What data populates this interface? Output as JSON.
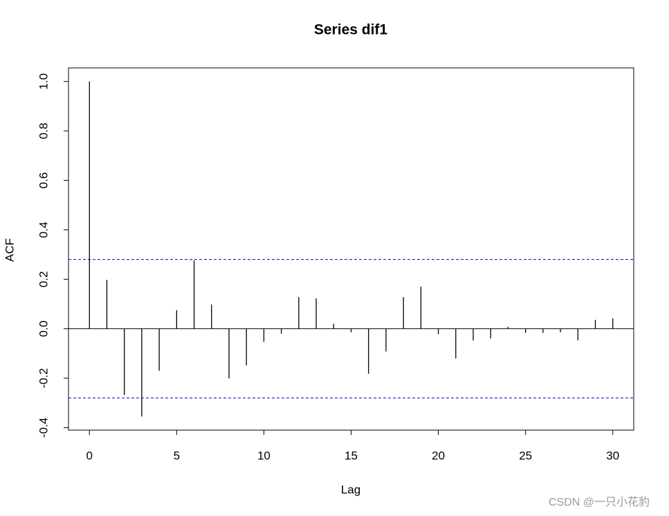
{
  "chart_data": {
    "type": "acf",
    "title": "Series  dif1",
    "x_label": "Lag",
    "y_label": "ACF",
    "x": [
      0,
      1,
      2,
      3,
      4,
      5,
      6,
      7,
      8,
      9,
      10,
      11,
      12,
      13,
      14,
      15,
      16,
      17,
      18,
      19,
      20,
      21,
      22,
      23,
      24,
      25,
      26,
      27,
      28,
      29,
      30
    ],
    "values": [
      1.0,
      0.198,
      -0.268,
      -0.355,
      -0.17,
      0.075,
      0.277,
      0.098,
      -0.201,
      -0.148,
      -0.053,
      -0.02,
      0.128,
      0.123,
      0.02,
      -0.014,
      -0.182,
      -0.092,
      0.128,
      0.17,
      -0.022,
      -0.12,
      -0.047,
      -0.039,
      0.008,
      -0.017,
      -0.017,
      -0.014,
      -0.047,
      0.036,
      0.042
    ],
    "color": "#000000",
    "ci": [
      -0.28,
      0.28
    ],
    "ci_color": "#0000cd",
    "xlim": [
      -1.2,
      31.2
    ],
    "ylim": [
      -0.41,
      1.055
    ],
    "xticks": [
      0,
      5,
      10,
      15,
      20,
      25,
      30
    ],
    "yticks": [
      {
        "value": -0.4,
        "label": "-0.4"
      },
      {
        "value": -0.2,
        "label": "-0.2"
      },
      {
        "value": 0,
        "label": "0.0"
      },
      {
        "value": 0.2,
        "label": "0.2"
      },
      {
        "value": 0.4,
        "label": "0.4"
      },
      {
        "value": 0.6,
        "label": "0.6"
      },
      {
        "value": 0.8,
        "label": "0.8"
      },
      {
        "value": 1.0,
        "label": "1.0"
      }
    ]
  },
  "watermark": "CSDN @一只小花豹"
}
